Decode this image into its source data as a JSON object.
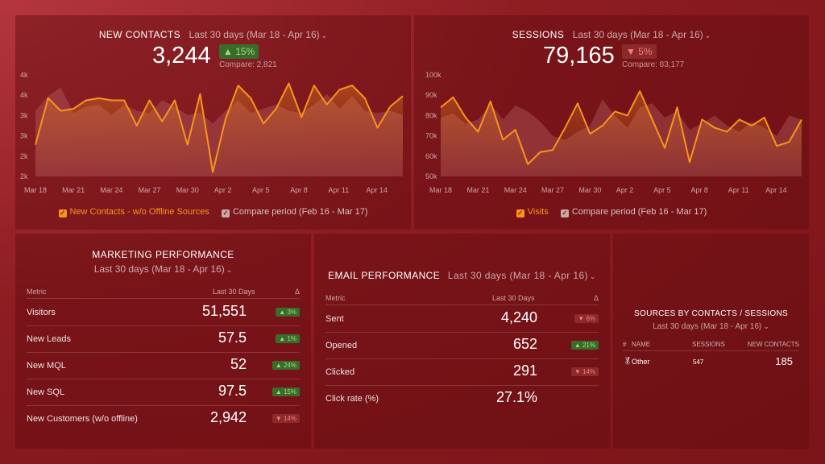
{
  "contacts": {
    "title": "NEW CONTACTS",
    "period": "Last 30 days (Mar 18 - Apr 16)",
    "value": "3,244",
    "change": "▲ 15%",
    "compare": "Compare: 2,821",
    "legend_main": "New Contacts - w/o Offline Sources",
    "legend_compare": "Compare period (Feb 16 - Mar 17)"
  },
  "sessions": {
    "title": "SESSIONS",
    "period": "Last 30 days (Mar 18 - Apr 16)",
    "value": "79,165",
    "change": "▼ 5%",
    "compare": "Compare: 83,177",
    "legend_main": "Visits",
    "legend_compare": "Compare period (Feb 16 - Mar 17)"
  },
  "marketing": {
    "title": "MARKETING PERFORMANCE",
    "period": "Last 30 days (Mar 18 - Apr 16)",
    "col_metric": "Metric",
    "col_period": "Last 30 Days",
    "col_delta": "Δ",
    "rows": [
      {
        "label": "Visitors",
        "value": "51,551",
        "delta": "▲ 3%",
        "dir": "up"
      },
      {
        "label": "New Leads",
        "value": "57.5",
        "delta": "▲ 1%",
        "dir": "up"
      },
      {
        "label": "New MQL",
        "value": "52",
        "delta": "▲ 24%",
        "dir": "up"
      },
      {
        "label": "New SQL",
        "value": "97.5",
        "delta": "▲ 15%",
        "dir": "up"
      },
      {
        "label": "New Customers (w/o offline)",
        "value": "2,942",
        "delta": "▼ 14%",
        "dir": "down"
      }
    ]
  },
  "email": {
    "title": "EMAIL PERFORMANCE",
    "period": "Last 30 days (Mar 18 - Apr 16)",
    "col_metric": "Metric",
    "col_period": "Last 30 Days",
    "col_delta": "Δ",
    "rows": [
      {
        "label": "Sent",
        "value": "4,240",
        "delta": "▼ 6%",
        "dir": "down"
      },
      {
        "label": "Opened",
        "value": "652",
        "delta": "▲ 21%",
        "dir": "up"
      },
      {
        "label": "Clicked",
        "value": "291",
        "delta": "▼ 14%",
        "dir": "down"
      },
      {
        "label": "Click rate (%)",
        "value": "27.1%",
        "delta": "",
        "dir": ""
      }
    ]
  },
  "sources": {
    "title": "SOURCES BY CONTACTS / SESSIONS",
    "period": "Last 30 days (Mar 18 - Apr 16)",
    "col_num": "#",
    "col_name": "NAME",
    "col_sessions": "SESSIONS",
    "col_contacts": "NEW CONTACTS",
    "row": {
      "icon": "medal-icon",
      "name": "Other",
      "sessions": "547",
      "contacts": "185"
    }
  },
  "chart_data": [
    {
      "type": "line",
      "x_ticks": [
        "Mar 18",
        "Mar 21",
        "Mar 24",
        "Mar 27",
        "Mar 30",
        "Apr 2",
        "Apr 5",
        "Apr 8",
        "Apr 11",
        "Apr 14"
      ],
      "y_ticks": [
        "2k",
        "2k",
        "3k",
        "3k",
        "4k",
        "4k"
      ],
      "ylim": [
        1800,
        4200
      ],
      "series": [
        {
          "name": "New Contacts - w/o Offline Sources",
          "color": "#f7941d",
          "values": [
            2550,
            3650,
            3350,
            3400,
            3600,
            3650,
            3600,
            3600,
            3000,
            3600,
            3100,
            3600,
            2550,
            3750,
            1900,
            3150,
            3950,
            3650,
            3050,
            3400,
            4000,
            3200,
            3950,
            3500,
            3850,
            3950,
            3650,
            2950,
            3450,
            3700
          ]
        },
        {
          "name": "Compare period (Feb 16 - Mar 17)",
          "color": "#c98080",
          "values": [
            3350,
            3700,
            3900,
            3300,
            3450,
            3500,
            3250,
            3500,
            3350,
            3300,
            3600,
            3450,
            3250,
            3300,
            3050,
            3350,
            3600,
            3300,
            3400,
            3500,
            3350,
            3300,
            3500,
            3750,
            3400,
            3700,
            3350,
            3300,
            3350,
            3250
          ]
        }
      ]
    },
    {
      "type": "line",
      "x_ticks": [
        "Mar 18",
        "Mar 21",
        "Mar 24",
        "Mar 27",
        "Mar 30",
        "Apr 2",
        "Apr 5",
        "Apr 8",
        "Apr 11",
        "Apr 14"
      ],
      "y_ticks": [
        "50k",
        "60k",
        "70k",
        "80k",
        "90k",
        "100k"
      ],
      "ylim": [
        50000,
        100000
      ],
      "series": [
        {
          "name": "Visits",
          "color": "#f7941d",
          "values": [
            84000,
            89000,
            79000,
            72000,
            87000,
            68000,
            73000,
            56000,
            62000,
            63000,
            74000,
            86000,
            71000,
            75000,
            82000,
            80000,
            92000,
            78000,
            64000,
            84000,
            57000,
            78000,
            74000,
            72000,
            78000,
            75000,
            79000,
            65000,
            67000,
            78000
          ]
        },
        {
          "name": "Compare period (Feb 16 - Mar 17)",
          "color": "#c98080",
          "values": [
            79000,
            81000,
            76000,
            78000,
            86000,
            78000,
            85000,
            82000,
            77000,
            70000,
            68000,
            72000,
            75000,
            88000,
            80000,
            74000,
            84000,
            86000,
            79000,
            82000,
            73000,
            76000,
            80000,
            75000,
            72000,
            77000,
            74000,
            70000,
            80000,
            78000
          ]
        }
      ]
    }
  ]
}
